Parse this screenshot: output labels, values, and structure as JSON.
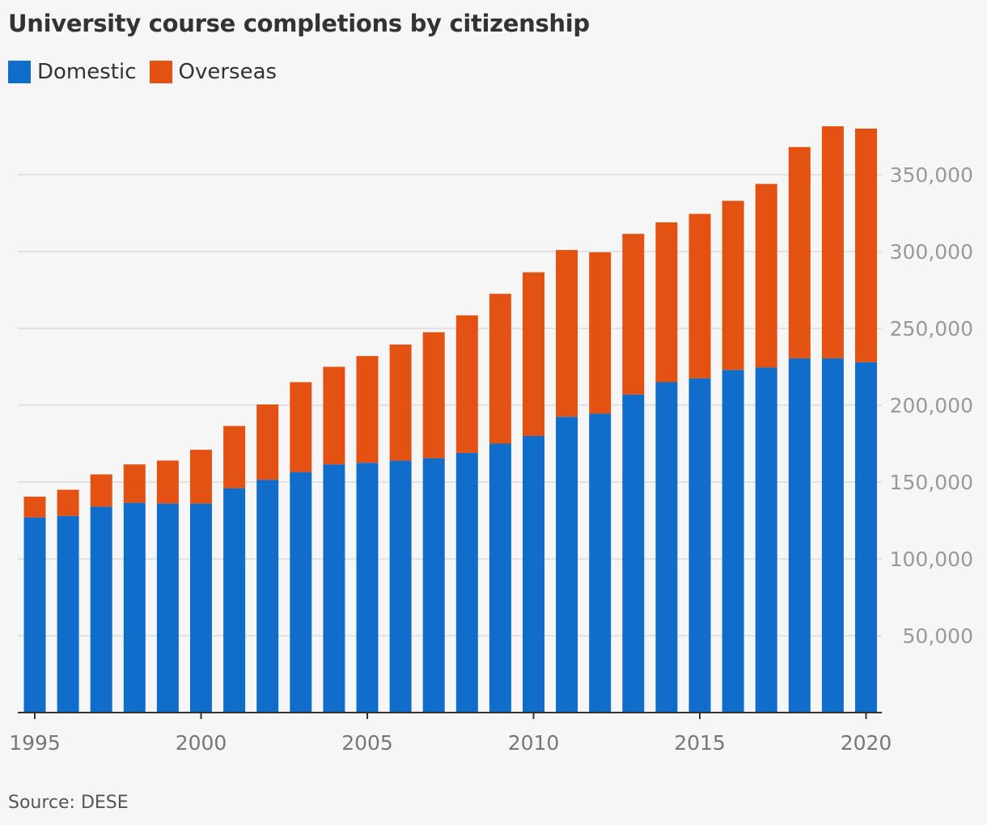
{
  "title": "University course completions by citizenship",
  "legend": [
    {
      "label": "Domestic",
      "color": "#116dca"
    },
    {
      "label": "Overseas",
      "color": "#e35213"
    }
  ],
  "source": "Source: DESE",
  "chart_data": {
    "type": "bar",
    "stacked": true,
    "categories": [
      1995,
      1996,
      1997,
      1998,
      1999,
      2000,
      2001,
      2002,
      2003,
      2004,
      2005,
      2006,
      2007,
      2008,
      2009,
      2010,
      2011,
      2012,
      2013,
      2014,
      2015,
      2016,
      2017,
      2018,
      2019,
      2020
    ],
    "series": [
      {
        "name": "Domestic",
        "color": "#116dca",
        "values": [
          127000,
          128000,
          134000,
          136500,
          136000,
          136000,
          146000,
          151500,
          156500,
          161500,
          162500,
          164000,
          165500,
          169000,
          175000,
          180000,
          192500,
          194500,
          207000,
          215000,
          217500,
          223000,
          224500,
          230500,
          230500,
          228000
        ]
      },
      {
        "name": "Overseas",
        "color": "#e35213",
        "values": [
          13500,
          17000,
          21000,
          25000,
          28000,
          35000,
          40500,
          49000,
          58500,
          63500,
          69500,
          75500,
          82000,
          89500,
          97500,
          106500,
          108500,
          105000,
          104500,
          104000,
          107000,
          110000,
          119500,
          137500,
          151000,
          152000
        ]
      }
    ],
    "y_ticks": [
      50000,
      100000,
      150000,
      200000,
      250000,
      300000,
      350000
    ],
    "y_tick_labels": [
      "50,000",
      "100,000",
      "150,000",
      "200,000",
      "250,000",
      "300,000",
      "350,000"
    ],
    "x_ticks": [
      1995,
      2000,
      2005,
      2010,
      2015,
      2020
    ],
    "x_tick_labels": [
      "1995",
      "2000",
      "2005",
      "2010",
      "2015",
      "2020"
    ],
    "ylim": [
      0,
      380000
    ],
    "grid": true,
    "y_axis_side": "right",
    "legend_position": "top-left",
    "xlabel": "",
    "ylabel": ""
  }
}
